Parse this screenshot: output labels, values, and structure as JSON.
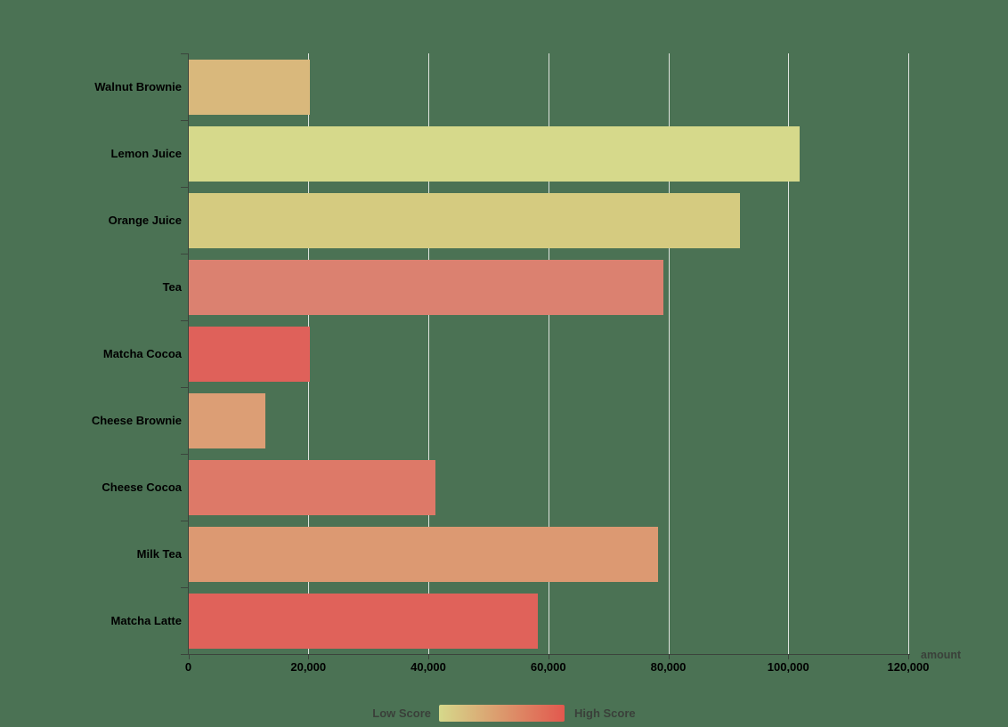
{
  "chart_data": {
    "type": "bar",
    "orientation": "horizontal",
    "title": "",
    "xlabel": "amount",
    "ylabel": "",
    "categories": [
      "Walnut Brownie",
      "Lemon Juice",
      "Orange Juice",
      "Tea",
      "Matcha Cocoa",
      "Cheese Brownie",
      "Cheese Cocoa",
      "Milk Tea",
      "Matcha Latte"
    ],
    "series": [
      {
        "name": "amount",
        "values": [
          20112,
          101852,
          91852,
          79146,
          20145,
          12755,
          41032,
          78254,
          58212
        ]
      }
    ],
    "bar_colors": [
      "#d9b87c",
      "#d6d98b",
      "#d5cb80",
      "#db8170",
      "#df615a",
      "#dc9e75",
      "#dd7968",
      "#dc9972",
      "#e0625a"
    ],
    "xlim": [
      0,
      120000
    ],
    "x_tick_labels": [
      "0",
      "20,000",
      "40,000",
      "60,000",
      "80,000",
      "100,000",
      "120,000"
    ],
    "grid": true,
    "legend": {
      "position": "bottom-center",
      "low_label": "Low Score",
      "high_label": "High Score",
      "gradient_colors": [
        "#d6d98b",
        "#e2584e"
      ]
    }
  },
  "colors": {
    "background": "#4b7254",
    "gridline": "#dfe3de",
    "axis": "#3b443c",
    "text": "#3a403a"
  }
}
